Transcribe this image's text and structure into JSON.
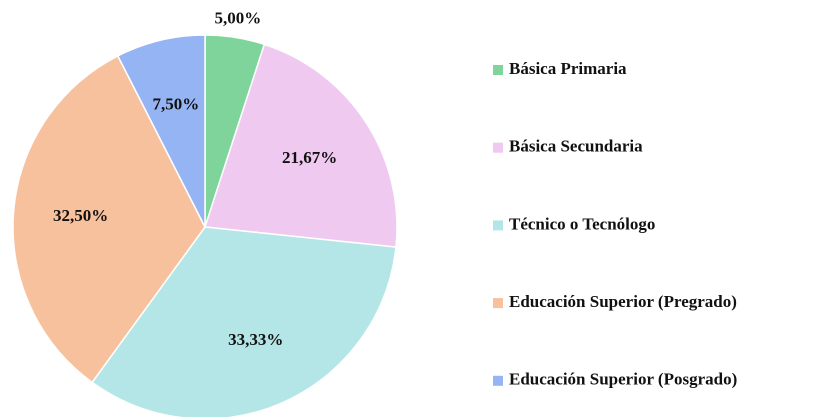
{
  "chart_data": {
    "type": "pie",
    "categories": [
      "Básica Primaria",
      "Básica Secundaria",
      "Técnico o Tecnólogo",
      "Educación Superior (Pregrado)",
      "Educación Superior (Posgrado)"
    ],
    "values": [
      5,
      21.67,
      33.33,
      32.5,
      7.5
    ],
    "value_labels": [
      "5,00%",
      "21,67%",
      "33,33%",
      "32,50%",
      "7,50%"
    ],
    "colors": [
      "#7ed49a",
      "#f0c9f1",
      "#b4e6e7",
      "#f8c19d",
      "#95b4f4"
    ],
    "legend": "right"
  }
}
